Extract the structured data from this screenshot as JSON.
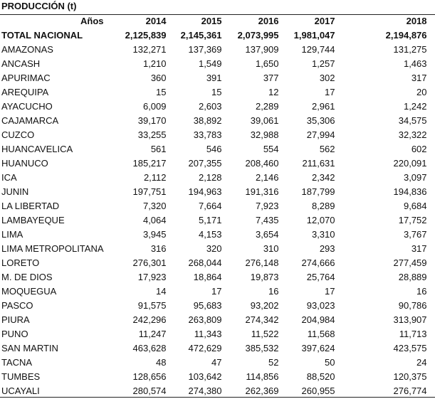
{
  "title": "PRODUCCIÓN (t)",
  "table": {
    "header": [
      "Años",
      "2014",
      "2015",
      "2016",
      "2017",
      "2018"
    ],
    "total": {
      "label": "TOTAL NACIONAL",
      "values": [
        "2,125,839",
        "2,145,361",
        "2,073,995",
        "1,981,047",
        "2,194,876"
      ]
    },
    "rows": [
      {
        "label": "AMAZONAS",
        "values": [
          "132,271",
          "137,369",
          "137,909",
          "129,744",
          "131,275"
        ]
      },
      {
        "label": "ANCASH",
        "values": [
          "1,210",
          "1,549",
          "1,650",
          "1,257",
          "1,463"
        ]
      },
      {
        "label": "APURIMAC",
        "values": [
          "360",
          "391",
          "377",
          "302",
          "317"
        ]
      },
      {
        "label": "AREQUIPA",
        "values": [
          "15",
          "15",
          "12",
          "17",
          "20"
        ]
      },
      {
        "label": "AYACUCHO",
        "values": [
          "6,009",
          "2,603",
          "2,289",
          "2,961",
          "1,242"
        ]
      },
      {
        "label": "CAJAMARCA",
        "values": [
          "39,170",
          "38,892",
          "39,061",
          "35,306",
          "34,575"
        ]
      },
      {
        "label": "CUZCO",
        "values": [
          "33,255",
          "33,783",
          "32,988",
          "27,994",
          "32,322"
        ]
      },
      {
        "label": "HUANCAVELICA",
        "values": [
          "561",
          "546",
          "554",
          "562",
          "602"
        ]
      },
      {
        "label": "HUANUCO",
        "values": [
          "185,217",
          "207,355",
          "208,460",
          "211,631",
          "220,091"
        ]
      },
      {
        "label": "ICA",
        "values": [
          "2,112",
          "2,128",
          "2,146",
          "2,342",
          "3,097"
        ]
      },
      {
        "label": "JUNIN",
        "values": [
          "197,751",
          "194,963",
          "191,316",
          "187,799",
          "194,836"
        ]
      },
      {
        "label": "LA LIBERTAD",
        "values": [
          "7,320",
          "7,664",
          "7,923",
          "8,289",
          "9,684"
        ]
      },
      {
        "label": "LAMBAYEQUE",
        "values": [
          "4,064",
          "5,171",
          "7,435",
          "12,070",
          "17,752"
        ]
      },
      {
        "label": "LIMA",
        "values": [
          "3,945",
          "4,153",
          "3,654",
          "3,310",
          "3,767"
        ]
      },
      {
        "label": "LIMA METROPOLITANA",
        "values": [
          "316",
          "320",
          "310",
          "293",
          "317"
        ]
      },
      {
        "label": "LORETO",
        "values": [
          "276,301",
          "268,044",
          "276,148",
          "274,666",
          "277,459"
        ]
      },
      {
        "label": "M. DE DIOS",
        "values": [
          "17,923",
          "18,864",
          "19,873",
          "25,764",
          "28,889"
        ]
      },
      {
        "label": "MOQUEGUA",
        "values": [
          "14",
          "17",
          "16",
          "17",
          "16"
        ]
      },
      {
        "label": "PASCO",
        "values": [
          "91,575",
          "95,683",
          "93,202",
          "93,023",
          "90,786"
        ]
      },
      {
        "label": "PIURA",
        "values": [
          "242,296",
          "263,809",
          "274,342",
          "204,984",
          "313,907"
        ]
      },
      {
        "label": "PUNO",
        "values": [
          "11,247",
          "11,343",
          "11,522",
          "11,568",
          "11,713"
        ]
      },
      {
        "label": "SAN MARTIN",
        "values": [
          "463,628",
          "472,629",
          "385,532",
          "397,624",
          "423,575"
        ]
      },
      {
        "label": "TACNA",
        "values": [
          "48",
          "47",
          "52",
          "50",
          "24"
        ]
      },
      {
        "label": "TUMBES",
        "values": [
          "128,656",
          "103,642",
          "114,856",
          "88,520",
          "120,375"
        ]
      },
      {
        "label": "UCAYALI",
        "values": [
          "280,574",
          "274,380",
          "262,369",
          "260,955",
          "276,774"
        ]
      }
    ]
  }
}
